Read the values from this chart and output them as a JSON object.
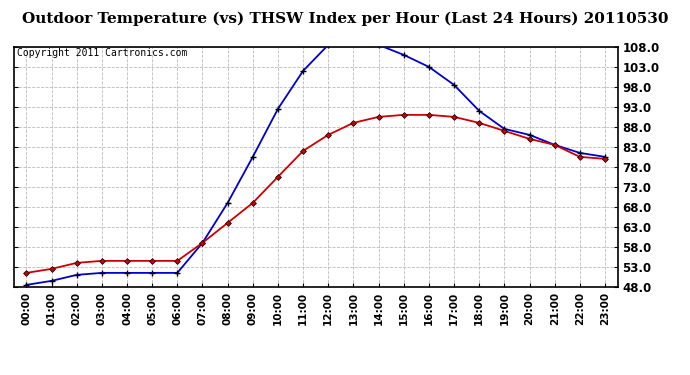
{
  "title": "Outdoor Temperature (vs) THSW Index per Hour (Last 24 Hours) 20110530",
  "copyright": "Copyright 2011 Cartronics.com",
  "hours": [
    "00:00",
    "01:00",
    "02:00",
    "03:00",
    "04:00",
    "05:00",
    "06:00",
    "07:00",
    "08:00",
    "09:00",
    "10:00",
    "11:00",
    "12:00",
    "13:00",
    "14:00",
    "15:00",
    "16:00",
    "17:00",
    "18:00",
    "19:00",
    "20:00",
    "21:00",
    "22:00",
    "23:00"
  ],
  "temp": [
    51.5,
    52.5,
    54.0,
    54.5,
    54.5,
    54.5,
    54.5,
    59.0,
    64.0,
    69.0,
    75.5,
    82.0,
    86.0,
    89.0,
    90.5,
    91.0,
    91.0,
    90.5,
    89.0,
    87.0,
    85.0,
    83.5,
    80.5,
    80.0
  ],
  "thsw": [
    48.5,
    49.5,
    51.0,
    51.5,
    51.5,
    51.5,
    51.5,
    59.0,
    69.0,
    80.5,
    92.5,
    102.0,
    108.5,
    109.5,
    108.5,
    106.0,
    103.0,
    98.5,
    92.0,
    87.5,
    86.0,
    83.5,
    81.5,
    80.5
  ],
  "ylim": [
    48.0,
    108.0
  ],
  "yticks": [
    48.0,
    53.0,
    58.0,
    63.0,
    68.0,
    73.0,
    78.0,
    83.0,
    88.0,
    93.0,
    98.0,
    103.0,
    108.0
  ],
  "temp_color": "#cc0000",
  "thsw_color": "#0000cc",
  "fig_bg_color": "#ffffff",
  "plot_bg_color": "#ffffff",
  "grid_color": "#bbbbbb",
  "outer_border_color": "#000000",
  "title_fontsize": 11,
  "copyright_fontsize": 7,
  "tick_fontsize": 8.5,
  "xlabel_fontsize": 7.5
}
